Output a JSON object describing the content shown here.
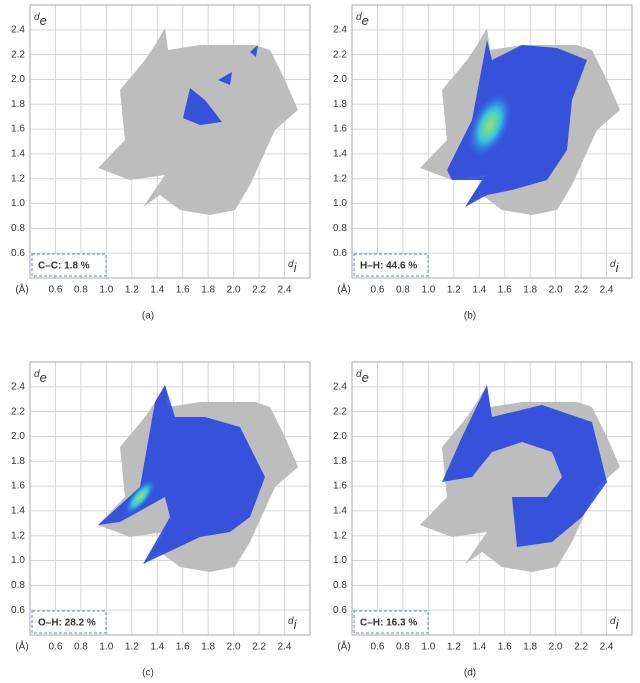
{
  "chart_data": [
    {
      "type": "fingerprint",
      "caption": "(a)",
      "annotation": "C–C: 1.8 %",
      "ylabel": "d",
      "ylabel_sub": "e",
      "xlabel": "d",
      "xlabel_sub": "i",
      "x_unit": "(Å)",
      "xlim": [
        0.4,
        2.6
      ],
      "ylim": [
        0.4,
        2.6
      ],
      "grid": true,
      "xticks": [
        0.6,
        0.8,
        {
          "value": 1,
          "label": "1.0"
        },
        1.2,
        1.4,
        1.6,
        1.8,
        {
          "value": 2,
          "label": "2.0"
        },
        2.2,
        2.4
      ],
      "yticks": [
        0.6,
        0.8,
        {
          "value": 1,
          "label": "1.0"
        },
        1.2,
        1.4,
        1.6,
        1.8,
        {
          "value": 2,
          "label": "2.0"
        },
        2.2,
        2.4
      ]
    },
    {
      "type": "fingerprint",
      "caption": "(b)",
      "annotation": "H–H: 44.6 %",
      "ylabel": "d",
      "ylabel_sub": "e",
      "xlabel": "d",
      "xlabel_sub": "i",
      "x_unit": "(Å)",
      "xlim": [
        0.4,
        2.6
      ],
      "ylim": [
        0.4,
        2.6
      ],
      "grid": true,
      "xticks": [
        0.6,
        0.8,
        {
          "value": 1,
          "label": "1.0"
        },
        1.2,
        1.4,
        1.6,
        1.8,
        {
          "value": 2,
          "label": "2.0"
        },
        2.2,
        2.4
      ],
      "yticks": [
        0.6,
        0.8,
        {
          "value": 1,
          "label": "1.0"
        },
        1.2,
        1.4,
        1.6,
        1.8,
        {
          "value": 2,
          "label": "2.0"
        },
        2.2,
        2.4
      ]
    },
    {
      "type": "fingerprint",
      "caption": "(c)",
      "annotation": "O–H: 28.2 %",
      "ylabel": "d",
      "ylabel_sub": "e",
      "xlabel": "d",
      "xlabel_sub": "i",
      "x_unit": "(Å)",
      "xlim": [
        0.4,
        2.6
      ],
      "ylim": [
        0.4,
        2.6
      ],
      "grid": true,
      "xticks": [
        0.6,
        0.8,
        {
          "value": 1,
          "label": "1.0"
        },
        1.2,
        1.4,
        1.6,
        1.8,
        {
          "value": 2,
          "label": "2.0"
        },
        2.2,
        2.4
      ],
      "yticks": [
        0.6,
        0.8,
        {
          "value": 1,
          "label": "1.0"
        },
        1.2,
        1.4,
        1.6,
        1.8,
        {
          "value": 2,
          "label": "2.0"
        },
        2.2,
        2.4
      ]
    },
    {
      "type": "fingerprint",
      "caption": "(d)",
      "annotation": "C–H: 16.3 %",
      "ylabel": "d",
      "ylabel_sub": "e",
      "xlabel": "d",
      "xlabel_sub": "i",
      "x_unit": "(Å)",
      "xlim": [
        0.4,
        2.6
      ],
      "ylim": [
        0.4,
        2.6
      ],
      "grid": true,
      "xticks": [
        0.6,
        0.8,
        {
          "value": 1,
          "label": "1.0"
        },
        1.2,
        1.4,
        1.6,
        1.8,
        {
          "value": 2,
          "label": "2.0"
        },
        2.2,
        2.4
      ],
      "yticks": [
        0.6,
        0.8,
        {
          "value": 1,
          "label": "1.0"
        },
        1.2,
        1.4,
        1.6,
        1.8,
        {
          "value": 2,
          "label": "2.0"
        },
        2.2,
        2.4
      ]
    }
  ]
}
